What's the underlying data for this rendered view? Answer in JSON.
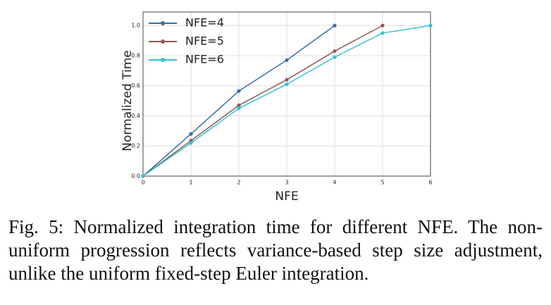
{
  "chart_data": {
    "type": "line",
    "xlabel": "NFE",
    "ylabel": "Normalized Time",
    "xlim": [
      0,
      6
    ],
    "ylim": [
      0,
      1.09
    ],
    "xticks": [
      0,
      1,
      2,
      3,
      4,
      5,
      6
    ],
    "yticks": [
      {
        "value": 0,
        "label": "0.0"
      },
      0.2,
      0.4,
      0.6,
      0.8,
      {
        "value": 1,
        "label": "1.0"
      }
    ],
    "grid": true,
    "legend": "upper-left",
    "series": [
      {
        "name": "NFE=4",
        "color": "#3b6f9e",
        "x": [
          0,
          1,
          2,
          3,
          4
        ],
        "values": [
          0,
          0.28,
          0.565,
          0.77,
          1.0
        ]
      },
      {
        "name": "NFE=5",
        "color": "#8e5b53",
        "x": [
          0,
          1,
          2,
          3,
          4,
          5
        ],
        "values": [
          0,
          0.235,
          0.47,
          0.64,
          0.83,
          1.0
        ]
      },
      {
        "name": "NFE=6",
        "color": "#2fc3cf",
        "x": [
          0,
          1,
          2,
          3,
          4,
          5,
          6
        ],
        "values": [
          0,
          0.22,
          0.45,
          0.61,
          0.79,
          0.95,
          1.0
        ]
      }
    ]
  },
  "caption": "Fig. 5: Normalized integration time for different NFE. The non-uniform progression reflects variance-based step size adjustment, unlike the uniform fixed-step Euler integration."
}
